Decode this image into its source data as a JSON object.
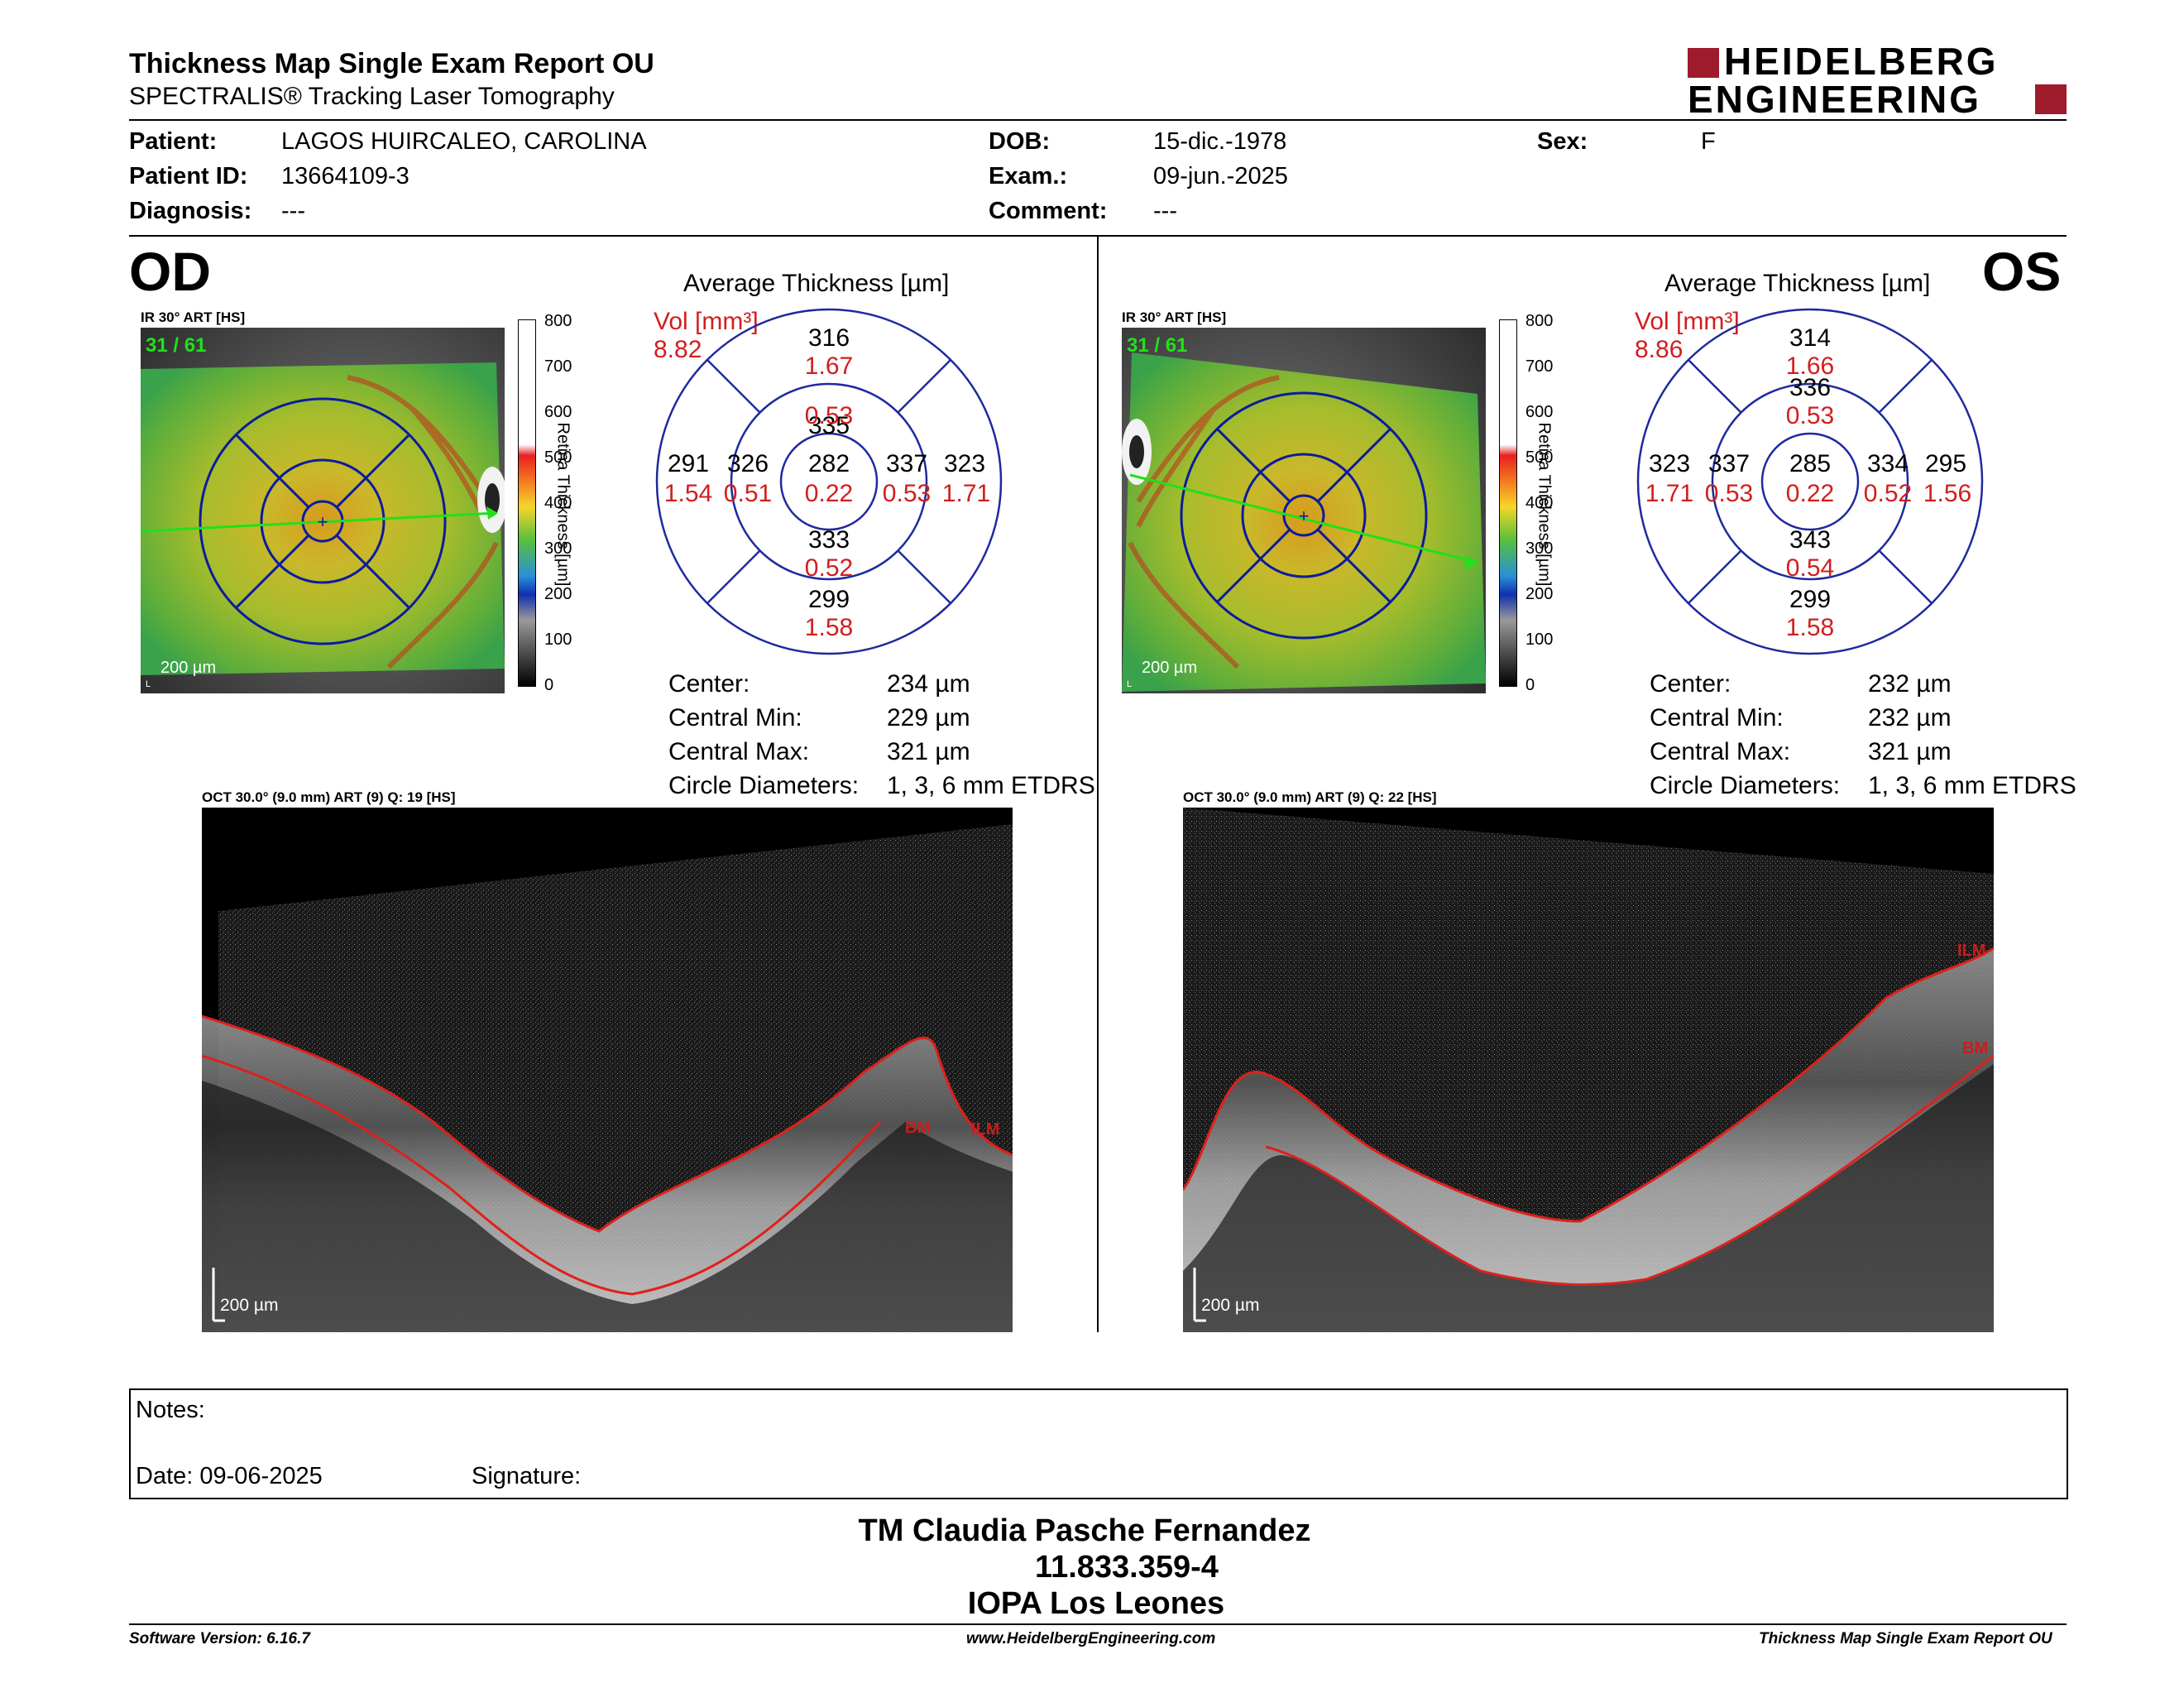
{
  "header": {
    "title": "Thickness Map Single Exam Report OU",
    "subtitle": "SPECTRALIS® Tracking Laser Tomography",
    "logo_line1": "HEIDELBERG",
    "logo_line2": "ENGINEERING"
  },
  "patient": {
    "patient_label": "Patient:",
    "patient_value": "LAGOS HUIRCALEO, CAROLINA",
    "id_label": "Patient ID:",
    "id_value": "13664109-3",
    "diagnosis_label": "Diagnosis:",
    "diagnosis_value": "---",
    "dob_label": "DOB:",
    "dob_value": "15-dic.-1978",
    "exam_label": "Exam.:",
    "exam_value": "09-jun.-2025",
    "comment_label": "Comment:",
    "comment_value": "---",
    "sex_label": "Sex:",
    "sex_value": "F"
  },
  "od": {
    "eye_label": "OD",
    "ir_caption": "IR 30° ART [HS]",
    "frame_counter": "31 / 61",
    "scale_label": "200 µm",
    "colorbar_ticks": [
      "800",
      "700",
      "600",
      "500",
      "400",
      "300",
      "200",
      "100",
      "0"
    ],
    "colorbar_title": "Retina  Thickness [µm]",
    "avg_title": "Average Thickness [µm]",
    "vol_label": "Vol [mm³]",
    "vol_value": "8.82",
    "grid": {
      "center": {
        "t": "282",
        "v": "0.22"
      },
      "inner_top": {
        "t": "335",
        "v": "0.53"
      },
      "inner_bottom": {
        "t": "333",
        "v": "0.52"
      },
      "inner_left": {
        "t": "326",
        "v": "0.51"
      },
      "inner_right": {
        "t": "337",
        "v": "0.53"
      },
      "outer_top": {
        "t": "316",
        "v": "1.67"
      },
      "outer_bottom": {
        "t": "299",
        "v": "1.58"
      },
      "outer_left": {
        "t": "291",
        "v": "1.54"
      },
      "outer_right": {
        "t": "323",
        "v": "1.71"
      }
    },
    "metrics": [
      {
        "label": "Center:",
        "value": "234 µm"
      },
      {
        "label": "Central Min:",
        "value": "229 µm"
      },
      {
        "label": "Central Max:",
        "value": "321 µm"
      },
      {
        "label": "Circle Diameters:",
        "value": "1, 3, 6 mm ETDRS"
      }
    ],
    "oct_caption": "OCT 30.0° (9.0 mm) ART (9) Q: 19 [HS]",
    "oct_scale": "200 µm",
    "oct_label_bm": "BM",
    "oct_label_ilm": "ILM"
  },
  "os": {
    "eye_label": "OS",
    "ir_caption": "IR 30° ART [HS]",
    "frame_counter": "31 / 61",
    "scale_label": "200 µm",
    "colorbar_ticks": [
      "800",
      "700",
      "600",
      "500",
      "400",
      "300",
      "200",
      "100",
      "0"
    ],
    "colorbar_title": "Retina  Thickness [µm]",
    "avg_title": "Average Thickness [µm]",
    "vol_label": "Vol [mm³]",
    "vol_value": "8.86",
    "grid": {
      "center": {
        "t": "285",
        "v": "0.22"
      },
      "inner_top": {
        "t": "336",
        "v": "0.53"
      },
      "inner_bottom": {
        "t": "343",
        "v": "0.54"
      },
      "inner_left": {
        "t": "337",
        "v": "0.53"
      },
      "inner_right": {
        "t": "334",
        "v": "0.52"
      },
      "outer_top": {
        "t": "314",
        "v": "1.66"
      },
      "outer_bottom": {
        "t": "299",
        "v": "1.58"
      },
      "outer_left": {
        "t": "323",
        "v": "1.71"
      },
      "outer_right": {
        "t": "295",
        "v": "1.56"
      }
    },
    "metrics": [
      {
        "label": "Center:",
        "value": "232 µm"
      },
      {
        "label": "Central Min:",
        "value": "232 µm"
      },
      {
        "label": "Central Max:",
        "value": "321 µm"
      },
      {
        "label": "Circle Diameters:",
        "value": "1, 3, 6 mm ETDRS"
      }
    ],
    "oct_caption": "OCT 30.0° (9.0 mm) ART (9) Q: 22 [HS]",
    "oct_scale": "200 µm",
    "oct_label_ilm": "ILM",
    "oct_label_bm": "BM"
  },
  "notes": {
    "notes_label": "Notes:",
    "date_label": "Date: 09-06-2025",
    "signature_label": "Signature:"
  },
  "stamp": {
    "line1": "TM Claudia Pasche Fernandez",
    "line2": "11.833.359-4",
    "line3": "IOPA Los Leones"
  },
  "footer": {
    "software": "Software Version: 6.16.7",
    "website": "www.HeidelbergEngineering.com",
    "report": "Thickness Map Single Exam Report OU"
  },
  "colors": {
    "red": "#d21e1e",
    "logo_red": "#9e1b2c",
    "grid_blue": "#1e2a9e",
    "arrow_green": "#22e01a"
  }
}
